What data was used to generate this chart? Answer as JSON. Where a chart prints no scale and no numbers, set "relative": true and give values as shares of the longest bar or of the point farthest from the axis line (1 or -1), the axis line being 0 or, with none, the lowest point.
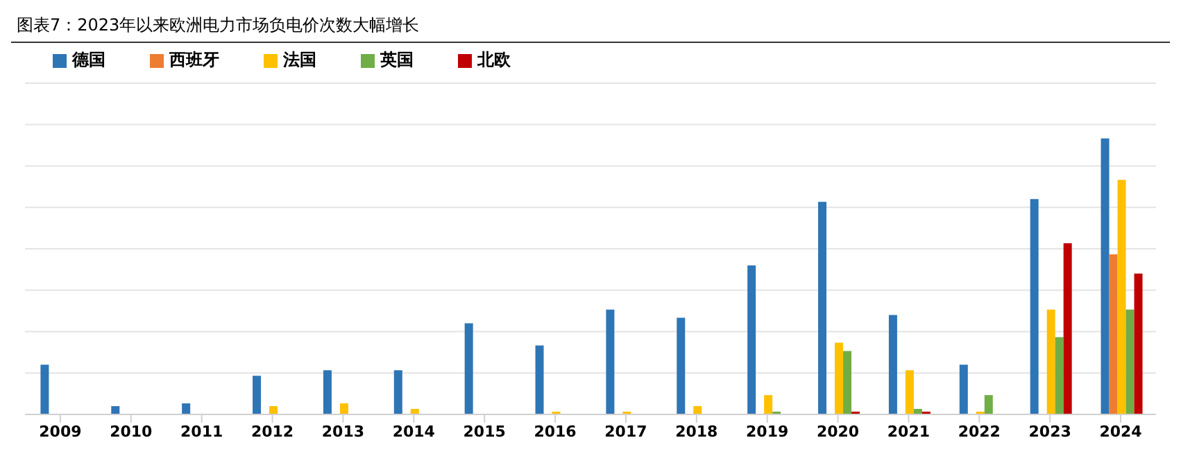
{
  "chart_data": {
    "type": "bar",
    "title": "图表7：2023年以来欧洲电力市场负电价次数大幅增长",
    "relative": true,
    "grid": "y",
    "legend": "top left",
    "categories": [
      "2009",
      "2010",
      "2011",
      "2012",
      "2013",
      "2014",
      "2015",
      "2016",
      "2017",
      "2018",
      "2019",
      "2020",
      "2021",
      "2022",
      "2023",
      "2024"
    ],
    "series": [
      {
        "name": "德国",
        "color": "#2e75b6",
        "values": [
          0.18,
          0.03,
          0.04,
          0.14,
          0.16,
          0.16,
          0.33,
          0.25,
          0.38,
          0.35,
          0.54,
          0.77,
          0.36,
          0.18,
          0.78,
          1
        ]
      },
      {
        "name": "西班牙",
        "color": "#ed7d31",
        "values": [
          0,
          0,
          0,
          0,
          0,
          0,
          0,
          0,
          0,
          0,
          0,
          0,
          0,
          0,
          0,
          0.58
        ]
      },
      {
        "name": "法国",
        "color": "#ffc000",
        "values": [
          0,
          0,
          0,
          0.03,
          0.04,
          0.02,
          0,
          0.01,
          0.01,
          0.03,
          0.07,
          0.26,
          0.16,
          0.01,
          0.38,
          0.85
        ]
      },
      {
        "name": "英国",
        "color": "#70ad47",
        "values": [
          0,
          0,
          0,
          0,
          0,
          0,
          0,
          0,
          0,
          0,
          0.01,
          0.23,
          0.02,
          0.07,
          0.28,
          0.38
        ]
      },
      {
        "name": "北欧",
        "color": "#c00000",
        "values": [
          0,
          0,
          0,
          0,
          0,
          0,
          0,
          0,
          0,
          0,
          0,
          0.01,
          0.01,
          0,
          0.62,
          0.51
        ]
      }
    ]
  }
}
